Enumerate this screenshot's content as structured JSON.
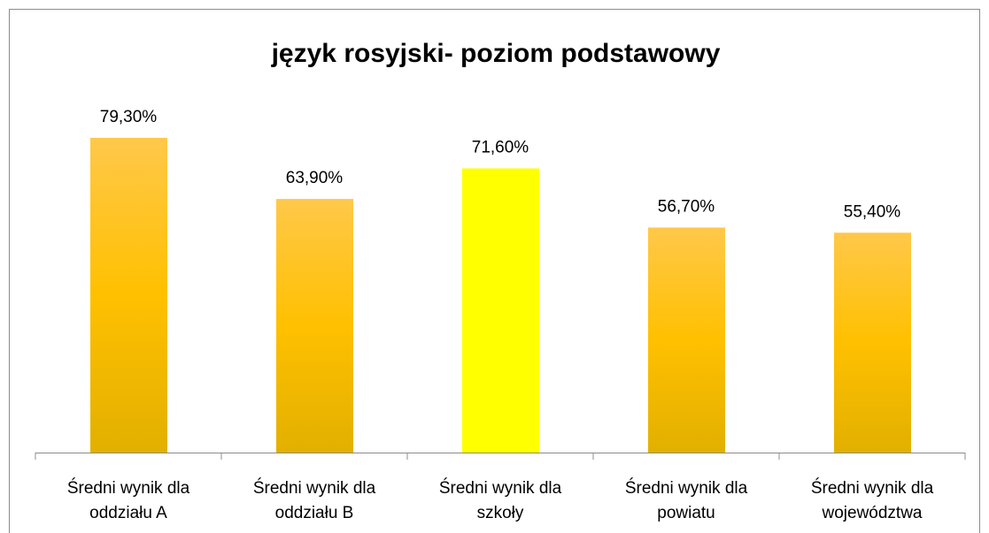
{
  "chart_data": {
    "type": "bar",
    "title": "język rosyjski- poziom podstawowy",
    "categories": [
      "Średni wynik dla oddziału A",
      "Średni wynik dla oddziału B",
      "Średni wynik dla szkoły",
      "Średni wynik dla powiatu",
      "Średni wynik dla województwa"
    ],
    "values": [
      79.3,
      63.9,
      71.6,
      56.7,
      55.4
    ],
    "value_labels": [
      "79,30%",
      "63,90%",
      "71,60%",
      "56,70%",
      "55,40%"
    ],
    "colors": [
      "#ffc000",
      "#ffc000",
      "#ffff00",
      "#ffc000",
      "#ffc000"
    ]
  }
}
